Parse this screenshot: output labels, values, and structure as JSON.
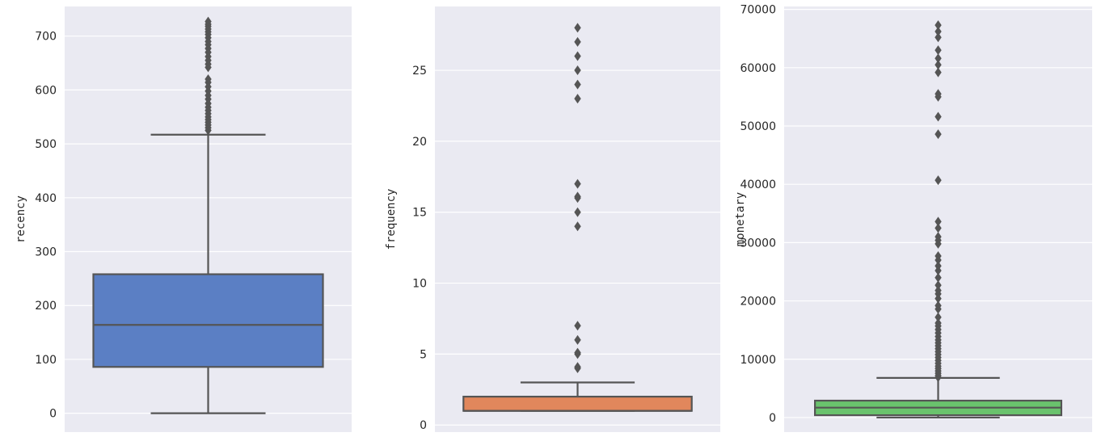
{
  "theme": {
    "panel_bg": "#eaeaf2",
    "grid": "#ffffff",
    "line": "#555555",
    "text": "#262626"
  },
  "chart_data": [
    {
      "type": "box",
      "ylabel": "recency",
      "ylim": [
        -35,
        755
      ],
      "yticks": [
        0,
        100,
        200,
        300,
        400,
        500,
        600,
        700
      ],
      "grid": true,
      "color": "#5b7fc4",
      "box": {
        "whislo": 0,
        "q1": 86,
        "med": 164,
        "q3": 258,
        "whishi": 517
      },
      "fliers": [
        525,
        530,
        535,
        540,
        545,
        550,
        556,
        562,
        568,
        575,
        583,
        590,
        598,
        606,
        614,
        620,
        642,
        648,
        655,
        662,
        670,
        677,
        684,
        690,
        697,
        703,
        708,
        713,
        718,
        722,
        727
      ]
    },
    {
      "type": "box",
      "ylabel": "frequency",
      "ylim": [
        -0.5,
        29.5
      ],
      "yticks": [
        0,
        5,
        10,
        15,
        20,
        25
      ],
      "grid": true,
      "color": "#e1875c",
      "box": {
        "whislo": 1,
        "q1": 1,
        "med": 1,
        "q3": 2,
        "whishi": 3
      },
      "fliers": [
        4,
        4.1,
        5,
        5.1,
        6,
        7,
        14,
        15,
        16,
        16.1,
        17,
        23,
        24,
        25,
        26,
        27,
        28
      ]
    },
    {
      "type": "box",
      "ylabel": "monetary",
      "ylim": [
        -2500,
        70500
      ],
      "yticks": [
        0,
        10000,
        20000,
        30000,
        40000,
        50000,
        60000,
        70000
      ],
      "grid": true,
      "color": "#6ac36d",
      "box": {
        "whislo": 0,
        "q1": 400,
        "med": 1700,
        "q3": 2900,
        "whishi": 6800
      },
      "fliers": [
        6900,
        7200,
        7600,
        8000,
        8400,
        8800,
        9300,
        9800,
        10300,
        10800,
        11300,
        11800,
        12300,
        12800,
        13300,
        13900,
        14500,
        15100,
        15700,
        16200,
        17200,
        18600,
        19200,
        20400,
        21200,
        21800,
        22700,
        24000,
        25200,
        26000,
        27000,
        27700,
        29800,
        30400,
        31000,
        32500,
        33600,
        40700,
        48600,
        51600,
        55000,
        55500,
        59200,
        60500,
        61600,
        63000,
        65200,
        66200,
        67300
      ]
    }
  ]
}
